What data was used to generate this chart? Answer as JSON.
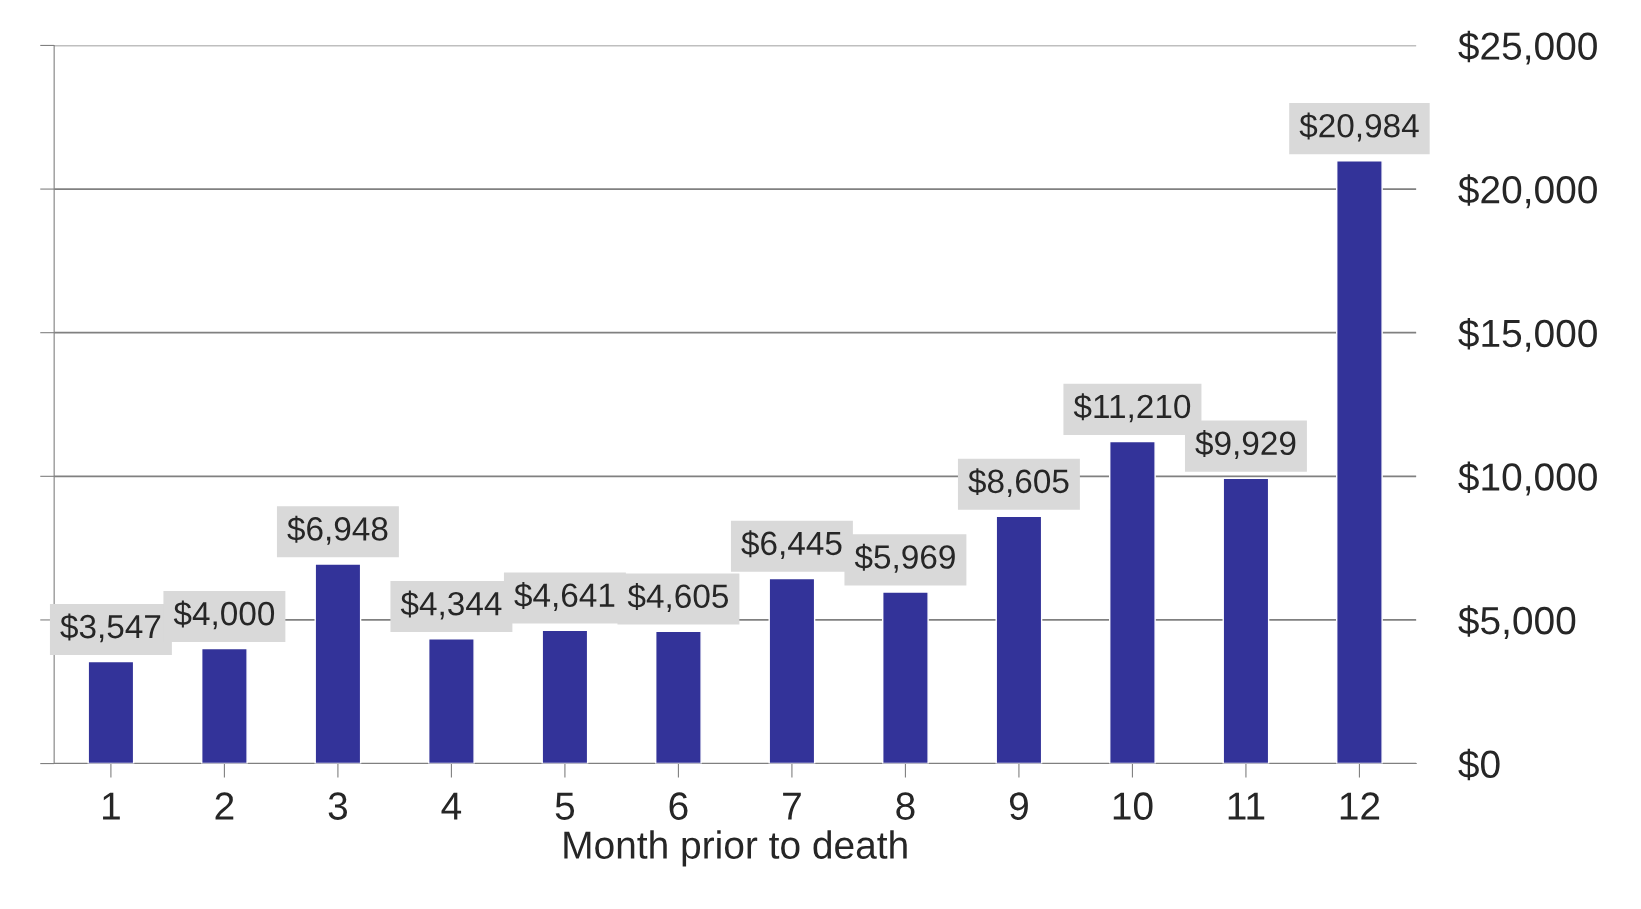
{
  "chart_data": {
    "type": "bar",
    "xlabel": "Month prior to death",
    "categories": [
      "1",
      "2",
      "3",
      "4",
      "5",
      "6",
      "7",
      "8",
      "9",
      "10",
      "11",
      "12"
    ],
    "values": [
      3547,
      4000,
      6948,
      4344,
      4641,
      4605,
      6445,
      5969,
      8605,
      11210,
      9929,
      20984
    ],
    "value_labels": [
      "$3,547",
      "$4,000",
      "$6,948",
      "$4,344",
      "$4,641",
      "$4,605",
      "$6,445",
      "$5,969",
      "$8,605",
      "$11,210",
      "$9,929",
      "$20,984"
    ],
    "color": "#333399",
    "ylim": [
      0,
      25000
    ],
    "yticks": [
      {
        "value": 0,
        "label": "$0"
      },
      {
        "value": 5000,
        "label": "$5,000"
      },
      {
        "value": 10000,
        "label": "$10,000"
      },
      {
        "value": 15000,
        "label": "$15,000"
      },
      {
        "value": 20000,
        "label": "$20,000"
      },
      {
        "value": 25000,
        "label": "$25,000"
      }
    ],
    "grid": "y"
  }
}
